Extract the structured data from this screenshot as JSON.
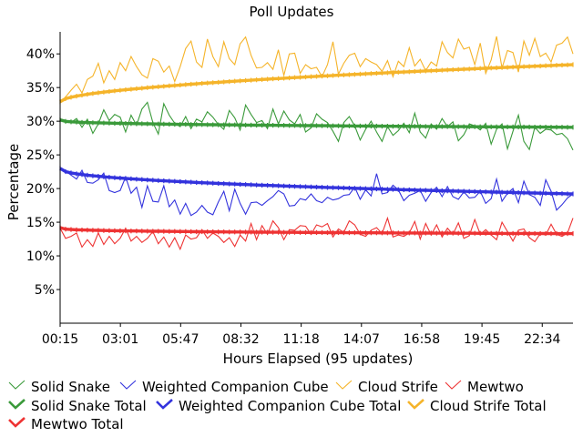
{
  "chart_data": {
    "type": "line",
    "title": "Poll Updates",
    "xlabel": "Hours Elapsed (95 updates)",
    "ylabel": "Percentage",
    "x_tick_labels": [
      "00:15",
      "03:01",
      "05:47",
      "08:32",
      "11:18",
      "14:07",
      "16:58",
      "19:45",
      "22:34"
    ],
    "y_tick_labels": [
      "5%",
      "10%",
      "15%",
      "20%",
      "25%",
      "30%",
      "35%",
      "40%"
    ],
    "y_ticks": [
      5,
      10,
      15,
      20,
      25,
      30,
      35,
      40
    ],
    "ylim": [
      0,
      43
    ],
    "x_count": 95,
    "grid": false,
    "legend_position": "bottom",
    "series": [
      {
        "name": "Solid Snake",
        "kind": "update",
        "color": "#3a9a3a",
        "values": [
          30.2,
          30.0,
          29.8,
          30.4,
          29.1,
          30.3,
          28.2,
          29.6,
          31.7,
          30.1,
          31.0,
          30.6,
          28.4,
          30.9,
          29.4,
          31.8,
          32.8,
          29.8,
          28.1,
          32.6,
          30.9,
          29.7,
          29.2,
          30.7,
          28.9,
          30.3,
          29.9,
          31.4,
          30.6,
          29.5,
          28.8,
          31.6,
          30.5,
          28.7,
          32.4,
          31.0,
          29.8,
          30.1,
          28.9,
          31.8,
          29.6,
          31.5,
          30.2,
          29.6,
          31.0,
          28.4,
          29.0,
          31.1,
          30.3,
          29.8,
          28.5,
          27.0,
          29.8,
          30.7,
          29.3,
          27.2,
          28.8,
          30.0,
          28.4,
          27.0,
          29.2,
          27.9,
          28.6,
          29.7,
          28.3,
          31.2,
          28.4,
          27.5,
          29.6,
          28.8,
          30.4,
          29.2,
          29.9,
          27.1,
          28.0,
          29.6,
          29.3,
          28.7,
          29.7,
          26.6,
          28.8,
          29.6,
          25.9,
          28.5,
          30.9,
          27.0,
          25.8,
          29.1,
          28.2,
          28.8,
          28.7,
          28.0,
          28.2,
          27.4,
          25.7
        ]
      },
      {
        "name": "Weighted Companion Cube",
        "kind": "update",
        "color": "#3333dd",
        "values": [
          23.0,
          22.6,
          22.0,
          21.4,
          22.7,
          20.9,
          20.8,
          21.3,
          22.3,
          19.7,
          19.4,
          19.7,
          21.7,
          19.3,
          20.2,
          17.2,
          20.4,
          18.1,
          18.0,
          20.4,
          17.3,
          18.3,
          16.2,
          17.8,
          16.0,
          16.5,
          17.5,
          16.5,
          16.1,
          18.0,
          19.6,
          16.7,
          19.9,
          17.8,
          16.2,
          17.9,
          18.0,
          17.5,
          18.2,
          18.8,
          19.7,
          19.2,
          17.4,
          17.5,
          18.5,
          18.3,
          19.2,
          18.2,
          17.9,
          18.7,
          18.3,
          18.5,
          19.0,
          19.1,
          20.2,
          18.4,
          19.8,
          18.9,
          22.2,
          19.2,
          19.4,
          20.5,
          19.8,
          18.2,
          19.0,
          19.3,
          19.7,
          18.1,
          19.4,
          20.2,
          18.8,
          20.3,
          18.8,
          18.4,
          19.5,
          18.6,
          18.7,
          19.6,
          17.8,
          18.5,
          21.4,
          18.1,
          19.3,
          20.0,
          17.9,
          21.1,
          19.1,
          18.7,
          17.5,
          21.3,
          19.6,
          16.8,
          17.6,
          18.6,
          19.2
        ]
      },
      {
        "name": "Cloud Strife",
        "kind": "update",
        "color": "#f5b42a",
        "values": [
          32.8,
          33.6,
          34.6,
          35.5,
          34.2,
          36.2,
          36.7,
          38.6,
          35.7,
          37.5,
          36.2,
          38.7,
          37.5,
          39.6,
          38.1,
          36.9,
          36.4,
          39.3,
          38.9,
          37.3,
          38.2,
          35.9,
          38.1,
          40.8,
          41.9,
          38.8,
          38.0,
          42.2,
          39.6,
          38.1,
          41.8,
          39.3,
          38.4,
          41.5,
          42.5,
          39.8,
          37.9,
          38.0,
          38.7,
          37.7,
          40.6,
          36.8,
          40.0,
          40.1,
          37.1,
          38.4,
          37.8,
          38.0,
          36.6,
          38.4,
          41.8,
          37.0,
          38.6,
          39.8,
          40.1,
          38.1,
          39.3,
          38.8,
          38.4,
          37.4,
          39.0,
          36.6,
          38.9,
          38.1,
          40.9,
          38.2,
          39.2,
          37.5,
          38.8,
          38.2,
          41.8,
          40.2,
          39.4,
          42.2,
          40.7,
          41.0,
          38.4,
          41.6,
          37.1,
          39.1,
          42.6,
          37.9,
          40.5,
          40.2,
          37.3,
          41.9,
          39.8,
          42.3,
          39.6,
          40.1,
          38.8,
          41.3,
          41.6,
          42.5,
          40.0
        ]
      },
      {
        "name": "Mewtwo",
        "kind": "update",
        "color": "#ee3333",
        "values": [
          14.1,
          12.6,
          12.9,
          13.4,
          11.3,
          12.4,
          11.4,
          13.4,
          11.7,
          12.9,
          11.8,
          12.6,
          14.1,
          12.2,
          12.9,
          12.0,
          12.6,
          13.6,
          11.8,
          12.8,
          11.3,
          12.7,
          11.0,
          13.1,
          12.5,
          12.7,
          13.9,
          12.6,
          13.4,
          12.9,
          12.0,
          12.7,
          11.4,
          13.1,
          12.2,
          14.8,
          12.4,
          14.5,
          13.2,
          15.2,
          14.2,
          12.4,
          13.9,
          13.8,
          14.5,
          14.4,
          13.2,
          14.6,
          14.3,
          14.8,
          12.8,
          14.0,
          13.5,
          15.2,
          14.6,
          13.2,
          12.9,
          13.8,
          14.2,
          13.3,
          15.6,
          12.8,
          13.1,
          12.9,
          13.4,
          15.1,
          12.5,
          14.8,
          13.1,
          14.6,
          12.8,
          14.1,
          13.2,
          14.9,
          12.6,
          13.0,
          15.4,
          13.2,
          13.9,
          13.1,
          12.4,
          15.0,
          13.6,
          12.2,
          13.8,
          14.0,
          12.7,
          12.1,
          13.3,
          13.1,
          14.7,
          13.2,
          12.9,
          13.4,
          15.6
        ]
      },
      {
        "name": "Solid Snake Total",
        "kind": "total",
        "color": "#3a9a3a",
        "start": 30.2,
        "end": 29.1,
        "shape": 0.35
      },
      {
        "name": "Weighted Companion Cube Total",
        "kind": "total",
        "color": "#3333dd",
        "start": 23.0,
        "end": 19.2,
        "shape": 0.45
      },
      {
        "name": "Cloud Strife Total",
        "kind": "total",
        "color": "#f5b42a",
        "start": 32.9,
        "end": 38.4,
        "shape": 0.55
      },
      {
        "name": "Mewtwo Total",
        "kind": "total",
        "color": "#ee3333",
        "start": 14.2,
        "end": 13.3,
        "shape": 0.3
      }
    ],
    "legend": [
      {
        "label": "Solid Snake",
        "color": "#3a9a3a",
        "kind": "update"
      },
      {
        "label": "Weighted Companion Cube",
        "color": "#3333dd",
        "kind": "update"
      },
      {
        "label": "Cloud Strife",
        "color": "#f5b42a",
        "kind": "update"
      },
      {
        "label": "Mewtwo",
        "color": "#ee3333",
        "kind": "update"
      },
      {
        "label": "Solid Snake Total",
        "color": "#3a9a3a",
        "kind": "total"
      },
      {
        "label": "Weighted Companion Cube Total",
        "color": "#3333dd",
        "kind": "total"
      },
      {
        "label": "Cloud Strife Total",
        "color": "#f5b42a",
        "kind": "total"
      },
      {
        "label": "Mewtwo Total",
        "color": "#ee3333",
        "kind": "total"
      }
    ]
  }
}
